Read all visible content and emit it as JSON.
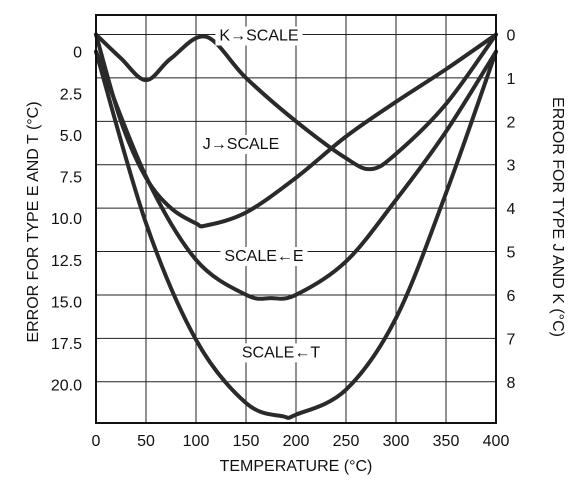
{
  "chart_data": {
    "type": "line",
    "xlabel": "TEMPERATURE (°C)",
    "ylabel_left": "ERROR FOR TYPE E AND T (°C)",
    "ylabel_right": "ERROR FOR TYPE J AND K (°C)",
    "xlim": [
      0,
      400
    ],
    "ylim_left": [
      -2.2,
      22.3
    ],
    "ylim_right": [
      -0.45,
      8.95
    ],
    "x_ticks": [
      0,
      50,
      100,
      150,
      200,
      250,
      300,
      350,
      400
    ],
    "y_ticks_left": [
      0,
      2.5,
      5.0,
      7.5,
      10.0,
      12.5,
      15.0,
      17.5,
      20.0
    ],
    "y_ticks_left_labels": [
      "0",
      "2.5",
      "5.0",
      "7.5",
      "10.0",
      "12.5",
      "15.0",
      "17.5",
      "20.0"
    ],
    "y_ticks_right": [
      0,
      1,
      2,
      3,
      4,
      5,
      6,
      7,
      8
    ],
    "y_axis_inverted": true,
    "grid": true,
    "series": [
      {
        "name": "K→SCALE",
        "axis": "right",
        "x": [
          0,
          25,
          50,
          75,
          110,
          150,
          200,
          250,
          275,
          300,
          350,
          400
        ],
        "y": [
          0,
          0.55,
          1.05,
          0.55,
          0.05,
          1.0,
          2.0,
          2.85,
          3.1,
          2.75,
          1.6,
          0
        ]
      },
      {
        "name": "J→SCALE",
        "axis": "right",
        "x": [
          0,
          25,
          50,
          75,
          100,
          110,
          150,
          200,
          250,
          300,
          350,
          400
        ],
        "y": [
          0,
          2.0,
          3.3,
          4.0,
          4.35,
          4.4,
          4.1,
          3.3,
          2.35,
          1.55,
          0.8,
          0
        ]
      },
      {
        "name": "SCALE←E",
        "axis": "left",
        "x": [
          0,
          50,
          100,
          150,
          175,
          200,
          250,
          300,
          350,
          400
        ],
        "y": [
          0,
          7.5,
          12.5,
          14.6,
          14.8,
          14.6,
          12.6,
          8.9,
          4.8,
          0
        ]
      },
      {
        "name": "SCALE←T",
        "axis": "left",
        "x": [
          0,
          50,
          100,
          150,
          187,
          200,
          250,
          300,
          350,
          400
        ],
        "y": [
          0,
          10.3,
          17.3,
          21.1,
          21.9,
          21.8,
          20.3,
          16.0,
          8.5,
          0
        ]
      }
    ],
    "annotations": [
      {
        "text": "K→SCALE",
        "x": 163,
        "y_right": 0.0
      },
      {
        "text": "J→SCALE",
        "x": 145,
        "y_right": 2.5
      },
      {
        "text": "SCALE←E",
        "x": 168,
        "y_right": 5.08
      },
      {
        "text": "SCALE←T",
        "x": 185,
        "y_right": 7.3
      }
    ]
  }
}
